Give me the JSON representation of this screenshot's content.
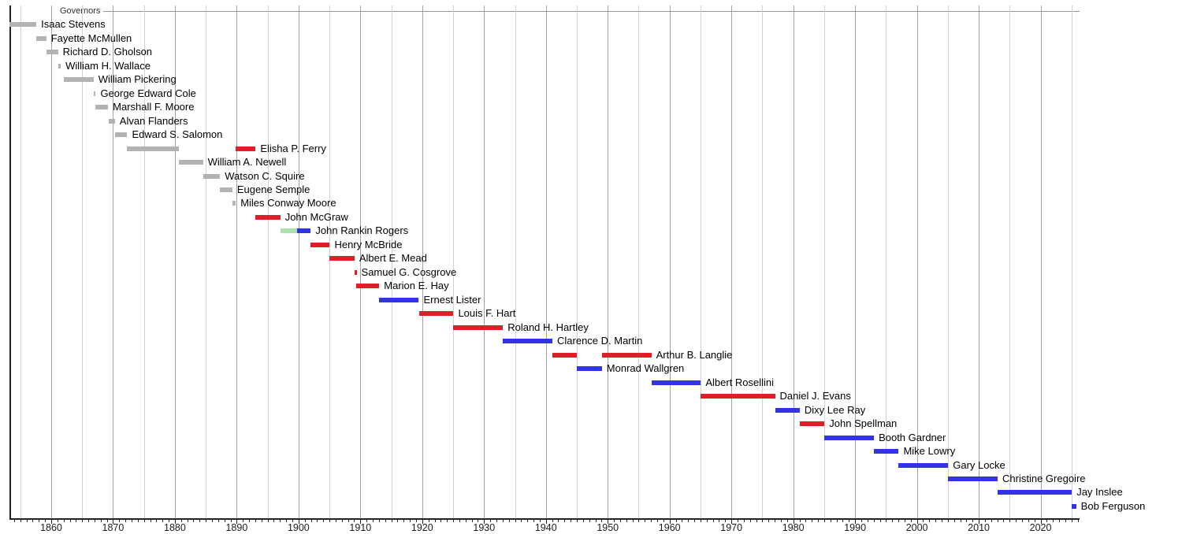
{
  "colors": {
    "territorial": "#b3b3b3",
    "republican": "#dd2027",
    "democratic": "#3333e6",
    "populist": "#ace1af",
    "grid_major": "#a3a3a3",
    "grid_minor": "#d2d2d2",
    "axis": "#222222",
    "header_line": "#999999"
  },
  "chart_data": {
    "type": "gantt",
    "title": "Governors",
    "legend": "none",
    "grid": "on",
    "x_axis": {
      "min": 1853.25,
      "max": 2026.3,
      "gridline_interval_years": 5,
      "minor_tick_interval_years": 1,
      "tick_labels": [
        "1860",
        "1870",
        "1880",
        "1890",
        "1900",
        "1910",
        "1920",
        "1930",
        "1940",
        "1950",
        "1960",
        "1970",
        "1980",
        "1990",
        "2000",
        "2010",
        "2020"
      ]
    },
    "rows": [
      {
        "name": "Isaac Stevens",
        "terms": [
          {
            "start": 1853.3,
            "end": 1857.6,
            "party": "territorial"
          }
        ]
      },
      {
        "name": "Fayette McMullen",
        "terms": [
          {
            "start": 1857.6,
            "end": 1859.2,
            "party": "territorial"
          }
        ]
      },
      {
        "name": "Richard D. Gholson",
        "terms": [
          {
            "start": 1859.3,
            "end": 1861.1,
            "party": "territorial"
          }
        ]
      },
      {
        "name": "William H. Wallace",
        "terms": [
          {
            "start": 1861.2,
            "end": 1861.55,
            "party": "territorial"
          }
        ]
      },
      {
        "name": "William Pickering",
        "terms": [
          {
            "start": 1862.1,
            "end": 1866.85,
            "party": "territorial"
          }
        ]
      },
      {
        "name": "George Edward Cole",
        "terms": [
          {
            "start": 1866.85,
            "end": 1867.2,
            "party": "territorial"
          }
        ]
      },
      {
        "name": "Marshall F. Moore",
        "terms": [
          {
            "start": 1867.2,
            "end": 1869.2,
            "party": "territorial"
          }
        ]
      },
      {
        "name": "Alvan Flanders",
        "terms": [
          {
            "start": 1869.25,
            "end": 1870.3,
            "party": "territorial"
          }
        ]
      },
      {
        "name": "Edward S. Salomon",
        "terms": [
          {
            "start": 1870.3,
            "end": 1872.3,
            "party": "territorial"
          }
        ]
      },
      {
        "name": "Elisha P. Ferry",
        "terms": [
          {
            "start": 1872.3,
            "end": 1880.6,
            "party": "territorial"
          },
          {
            "start": 1889.85,
            "end": 1893.05,
            "party": "republican"
          }
        ]
      },
      {
        "name": "William A. Newell",
        "terms": [
          {
            "start": 1880.6,
            "end": 1884.55,
            "party": "territorial"
          }
        ]
      },
      {
        "name": "Watson C. Squire",
        "terms": [
          {
            "start": 1884.55,
            "end": 1887.3,
            "party": "territorial"
          }
        ]
      },
      {
        "name": "Eugene Semple",
        "terms": [
          {
            "start": 1887.3,
            "end": 1889.3,
            "party": "territorial"
          }
        ]
      },
      {
        "name": "Miles Conway Moore",
        "terms": [
          {
            "start": 1889.3,
            "end": 1889.85,
            "party": "territorial"
          }
        ]
      },
      {
        "name": "John McGraw",
        "terms": [
          {
            "start": 1893.05,
            "end": 1897.05,
            "party": "republican"
          }
        ]
      },
      {
        "name": "John Rankin Rogers",
        "terms": [
          {
            "start": 1897.05,
            "end": 1899.8,
            "party": "populist"
          },
          {
            "start": 1899.8,
            "end": 1901.98,
            "party": "democratic"
          }
        ]
      },
      {
        "name": "Henry McBride",
        "terms": [
          {
            "start": 1901.98,
            "end": 1905.05,
            "party": "republican"
          }
        ]
      },
      {
        "name": "Albert E. Mead",
        "terms": [
          {
            "start": 1905.05,
            "end": 1909.05,
            "party": "republican"
          }
        ]
      },
      {
        "name": "Samuel G. Cosgrove",
        "terms": [
          {
            "start": 1909.07,
            "end": 1909.32,
            "party": "republican"
          }
        ]
      },
      {
        "name": "Marion E. Hay",
        "terms": [
          {
            "start": 1909.32,
            "end": 1913.05,
            "party": "republican"
          }
        ]
      },
      {
        "name": "Ernest Lister",
        "terms": [
          {
            "start": 1913.05,
            "end": 1919.45,
            "party": "democratic"
          }
        ]
      },
      {
        "name": "Louis F. Hart",
        "terms": [
          {
            "start": 1919.45,
            "end": 1925.05,
            "party": "republican"
          }
        ]
      },
      {
        "name": "Roland H. Hartley",
        "terms": [
          {
            "start": 1925.05,
            "end": 1933.05,
            "party": "republican"
          }
        ]
      },
      {
        "name": "Clarence D. Martin",
        "terms": [
          {
            "start": 1933.05,
            "end": 1941.05,
            "party": "democratic"
          }
        ]
      },
      {
        "name": "Arthur B. Langlie",
        "terms": [
          {
            "start": 1941.05,
            "end": 1945.05,
            "party": "republican"
          },
          {
            "start": 1949.05,
            "end": 1957.05,
            "party": "republican"
          }
        ]
      },
      {
        "name": "Monrad Wallgren",
        "terms": [
          {
            "start": 1945.05,
            "end": 1949.05,
            "party": "democratic"
          }
        ]
      },
      {
        "name": "Albert Rosellini",
        "terms": [
          {
            "start": 1957.05,
            "end": 1965.05,
            "party": "democratic"
          }
        ]
      },
      {
        "name": "Daniel J. Evans",
        "terms": [
          {
            "start": 1965.05,
            "end": 1977.05,
            "party": "republican"
          }
        ]
      },
      {
        "name": "Dixy Lee Ray",
        "terms": [
          {
            "start": 1977.05,
            "end": 1981.05,
            "party": "democratic"
          }
        ]
      },
      {
        "name": "John Spellman",
        "terms": [
          {
            "start": 1981.05,
            "end": 1985.05,
            "party": "republican"
          }
        ]
      },
      {
        "name": "Booth Gardner",
        "terms": [
          {
            "start": 1985.05,
            "end": 1993.05,
            "party": "democratic"
          }
        ]
      },
      {
        "name": "Mike Lowry",
        "terms": [
          {
            "start": 1993.05,
            "end": 1997.05,
            "party": "democratic"
          }
        ]
      },
      {
        "name": "Gary Locke",
        "terms": [
          {
            "start": 1997.05,
            "end": 2005.05,
            "party": "democratic"
          }
        ]
      },
      {
        "name": "Christine Gregoire",
        "terms": [
          {
            "start": 2005.05,
            "end": 2013.05,
            "party": "democratic"
          }
        ]
      },
      {
        "name": "Jay Inslee",
        "terms": [
          {
            "start": 2013.05,
            "end": 2025.05,
            "party": "democratic"
          }
        ]
      },
      {
        "name": "Bob Ferguson",
        "terms": [
          {
            "start": 2025.05,
            "end": 2025.75,
            "party": "democratic"
          }
        ]
      }
    ]
  }
}
